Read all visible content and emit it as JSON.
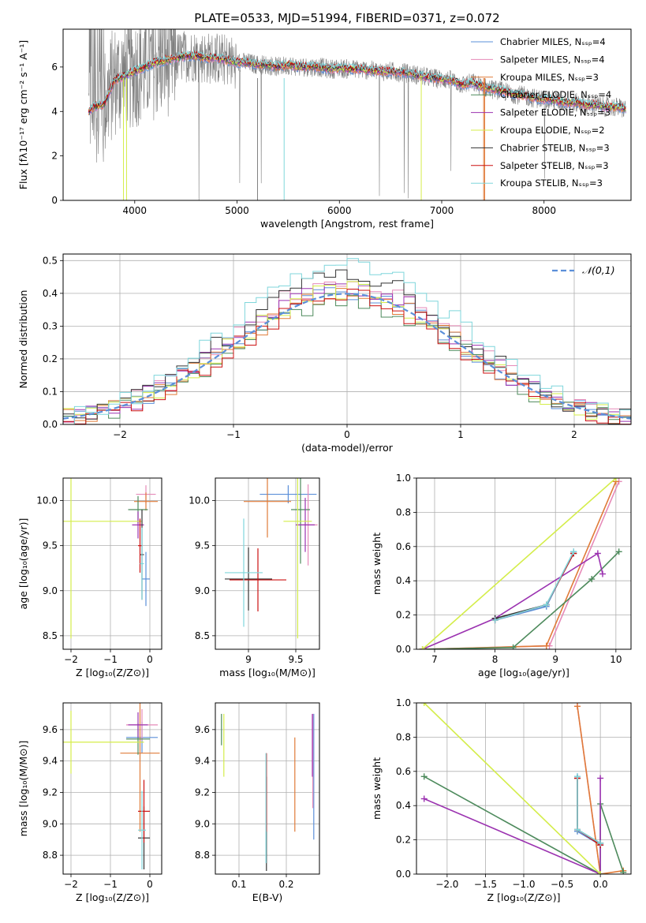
{
  "colors": {
    "chabrier_miles": "#5b8fd9",
    "salpeter_miles": "#e68ab8",
    "kroupa_miles": "#e07b39",
    "chabrier_elodie": "#4d8a5c",
    "salpeter_elodie": "#9b32b0",
    "kroupa_elodie": "#d4ed4a",
    "chabrier_stelib": "#333333",
    "salpeter_stelib": "#cc1111",
    "kroupa_stelib": "#7fd6db",
    "normal": "#5b8fd9",
    "observed": "#808080",
    "grid": "#b0b0b0"
  },
  "chart_data": [
    {
      "id": "spectrum",
      "type": "line",
      "title": "PLATE=0533, MJD=51994, FIBERID=0371, z=0.072",
      "xlabel": "wavelength [Angstrom, rest frame]",
      "ylabel": "Flux [fλ10⁻¹⁷ erg cm⁻² s⁻¹ A⁻¹]",
      "xlim": [
        3300,
        8850
      ],
      "ylim": [
        0,
        7.7
      ],
      "xticks": [
        4000,
        5000,
        6000,
        7000,
        8000
      ],
      "yticks": [
        0,
        2,
        4,
        6
      ],
      "grid": false,
      "legend_position": "upper-right",
      "legend": [
        "Chabrier MILES, Nₛₛₚ=4",
        "Salpeter MILES, Nₛₛₚ=4",
        "Kroupa MILES, Nₛₛₚ=3",
        "Chabrier ELODIE, Nₛₛₚ=4",
        "Salpeter ELODIE, Nₛₛₚ=3",
        "Kroupa ELODIE, Nₛₛₚ=2",
        "Chabrier STELIB, Nₛₛₚ=3",
        "Salpeter STELIB, Nₛₛₚ=3",
        "Kroupa STELIB, Nₛₛₚ=3"
      ],
      "observed_x": [
        3550,
        3600,
        3700,
        3800,
        3900,
        4000,
        4100,
        4200,
        4300,
        4400,
        4500,
        4600,
        4700,
        4800,
        4900,
        5000,
        5100,
        5200,
        5300,
        5400,
        5500,
        5600,
        5700,
        5800,
        5900,
        6000,
        6100,
        6200,
        6300,
        6400,
        6500,
        6600,
        6700,
        6800,
        6900,
        7000,
        7100,
        7200,
        7300,
        7400,
        7500,
        7600,
        7700,
        7800,
        7900,
        8000,
        8100,
        8200,
        8300,
        8400,
        8500,
        8600,
        8700,
        8800
      ],
      "model_y": [
        4.0,
        4.2,
        4.3,
        5.4,
        5.6,
        5.8,
        6.0,
        6.2,
        6.3,
        6.4,
        6.5,
        6.5,
        6.4,
        6.4,
        6.3,
        6.2,
        6.2,
        6.1,
        6.1,
        6.0,
        6.1,
        6.0,
        6.0,
        6.0,
        5.9,
        5.95,
        5.9,
        5.9,
        5.85,
        5.8,
        5.8,
        5.75,
        5.7,
        5.6,
        5.5,
        5.45,
        5.4,
        5.2,
        5.3,
        5.1,
        5.0,
        4.9,
        4.8,
        4.7,
        4.6,
        4.55,
        4.5,
        4.4,
        4.4,
        4.3,
        4.3,
        4.2,
        4.2,
        4.1
      ]
    },
    {
      "id": "residuals",
      "type": "line",
      "xlabel": "(data-model)/error",
      "ylabel": "Normed distribution",
      "xlim": [
        -2.5,
        2.5
      ],
      "ylim": [
        0,
        0.52
      ],
      "xticks": [
        -2,
        -1,
        0,
        1,
        2
      ],
      "yticks": [
        0.0,
        0.1,
        0.2,
        0.3,
        0.4,
        0.5
      ],
      "grid": true,
      "legend_position": "upper-right",
      "legend": [
        "𝒩(0,1)"
      ],
      "bin_width": 0.1,
      "hist_peaks": [
        0.41,
        0.44,
        0.4,
        0.38,
        0.42,
        0.41,
        0.46,
        0.39,
        0.5
      ]
    },
    {
      "id": "age_vs_Z",
      "type": "scatter",
      "xlabel": "Z [log₁₀(Z/Z⊙)]",
      "ylabel": "age  [log₁₀(age/yr)]",
      "xlim": [
        -2.2,
        0.3
      ],
      "ylim": [
        8.35,
        10.25
      ],
      "xticks": [
        -2,
        -1,
        0
      ],
      "yticks": [
        8.5,
        9.0,
        9.5,
        10.0
      ],
      "grid": true,
      "points": [
        {
          "m": "chabrier_miles",
          "x": -0.1,
          "y": 9.13,
          "xe": 0.1,
          "ye": 0.3
        },
        {
          "m": "salpeter_miles",
          "x": -0.1,
          "y": 10.07,
          "xe": 0.25,
          "ye": 0.1
        },
        {
          "m": "kroupa_miles",
          "x": -0.1,
          "y": 9.99,
          "xe": 0.3,
          "ye": 0.1
        },
        {
          "m": "chabrier_elodie",
          "x": -0.3,
          "y": 9.9,
          "xe": 0.25,
          "ye": 0.15
        },
        {
          "m": "salpeter_elodie",
          "x": -0.3,
          "y": 9.73,
          "xe": 0.15,
          "ye": 0.15
        },
        {
          "m": "kroupa_elodie",
          "x": -2.0,
          "y": 9.77,
          "xe": 1.8,
          "ye": 1.3
        },
        {
          "m": "chabrier_stelib",
          "x": -0.2,
          "y": 9.4,
          "xe": 0.05,
          "ye": 0.5
        },
        {
          "m": "salpeter_stelib",
          "x": -0.25,
          "y": 9.5,
          "xe": 0.05,
          "ye": 0.3
        },
        {
          "m": "kroupa_stelib",
          "x": -0.2,
          "y": 9.3,
          "xe": 0.05,
          "ye": 0.4
        }
      ]
    },
    {
      "id": "age_vs_mass",
      "type": "scatter",
      "xlabel": "mass [log₁₀(M/M⊙)]",
      "xlim": [
        8.65,
        9.75
      ],
      "ylim": [
        8.35,
        10.25
      ],
      "xticks": [
        9.0,
        9.5
      ],
      "yticks": [
        8.5,
        9.0,
        9.5,
        10.0
      ],
      "grid": true,
      "points": [
        {
          "m": "chabrier_miles",
          "x": 9.42,
          "y": 10.07,
          "xe": 0.3,
          "ye": 0.1
        },
        {
          "m": "salpeter_miles",
          "x": 9.63,
          "y": 9.73,
          "xe": 0.1,
          "ye": 0.45
        },
        {
          "m": "kroupa_miles",
          "x": 9.2,
          "y": 9.99,
          "xe": 0.25,
          "ye": 0.4
        },
        {
          "m": "chabrier_elodie",
          "x": 9.55,
          "y": 9.9,
          "xe": 0.1,
          "ye": 0.6
        },
        {
          "m": "salpeter_elodie",
          "x": 9.6,
          "y": 9.73,
          "xe": 0.1,
          "ye": 0.3
        },
        {
          "m": "kroupa_elodie",
          "x": 9.52,
          "y": 9.77,
          "xe": 0.15,
          "ye": 1.3
        },
        {
          "m": "chabrier_stelib",
          "x": 9.0,
          "y": 9.13,
          "xe": 0.25,
          "ye": 0.35
        },
        {
          "m": "salpeter_stelib",
          "x": 9.1,
          "y": 9.12,
          "xe": 0.3,
          "ye": 0.35
        },
        {
          "m": "kroupa_stelib",
          "x": 8.95,
          "y": 9.2,
          "xe": 0.2,
          "ye": 0.6
        }
      ]
    },
    {
      "id": "weight_vs_age",
      "type": "line",
      "xlabel": "age  [log₁₀(age/yr)]",
      "ylabel": "mass weight",
      "xlim": [
        6.7,
        10.25
      ],
      "ylim": [
        0,
        1
      ],
      "xticks": [
        7,
        8,
        9,
        10
      ],
      "yticks": [
        0.0,
        0.2,
        0.4,
        0.6,
        0.8,
        1.0
      ],
      "grid": true,
      "series": [
        {
          "m": "chabrier_miles",
          "x": [
            8.0,
            8.85,
            9.3
          ],
          "y": [
            0.17,
            0.25,
            0.57
          ]
        },
        {
          "m": "salpeter_miles",
          "x": [
            6.8,
            8.9,
            10.05
          ],
          "y": [
            0.0,
            0.02,
            0.98
          ]
        },
        {
          "m": "kroupa_miles",
          "x": [
            6.8,
            8.85,
            10.0
          ],
          "y": [
            0.0,
            0.02,
            0.98
          ]
        },
        {
          "m": "chabrier_elodie",
          "x": [
            6.8,
            8.3,
            9.6,
            10.05
          ],
          "y": [
            0.0,
            0.01,
            0.41,
            0.57
          ]
        },
        {
          "m": "salpeter_elodie",
          "x": [
            6.8,
            8.0,
            9.7,
            9.78
          ],
          "y": [
            0.0,
            0.18,
            0.56,
            0.44
          ]
        },
        {
          "m": "kroupa_elodie",
          "x": [
            6.8,
            10.0
          ],
          "y": [
            0.0,
            1.0
          ]
        },
        {
          "m": "chabrier_stelib",
          "x": [
            8.0,
            8.85,
            9.3
          ],
          "y": [
            0.18,
            0.26,
            0.56
          ]
        },
        {
          "m": "salpeter_stelib",
          "x": [
            8.0,
            8.85,
            9.3
          ],
          "y": [
            0.17,
            0.26,
            0.56
          ]
        },
        {
          "m": "kroupa_stelib",
          "x": [
            8.0,
            8.85,
            9.3
          ],
          "y": [
            0.17,
            0.26,
            0.57
          ]
        }
      ]
    },
    {
      "id": "mass_vs_Z",
      "type": "scatter",
      "xlabel": "Z [log₁₀(Z/Z⊙)]",
      "ylabel": "mass [log₁₀(M/M⊙)]",
      "xlim": [
        -2.2,
        0.3
      ],
      "ylim": [
        8.68,
        9.77
      ],
      "xticks": [
        -2,
        -1,
        0
      ],
      "yticks": [
        8.8,
        9.0,
        9.2,
        9.4,
        9.6
      ],
      "grid": true,
      "points": [
        {
          "m": "chabrier_miles",
          "x": -0.2,
          "y": 9.55,
          "xe": 0.4,
          "ye": 0.1
        },
        {
          "m": "salpeter_miles",
          "x": -0.2,
          "y": 9.63,
          "xe": 0.4,
          "ye": 0.1
        },
        {
          "m": "kroupa_miles",
          "x": -0.25,
          "y": 9.45,
          "xe": 0.5,
          "ye": 0.5
        },
        {
          "m": "chabrier_elodie",
          "x": -0.3,
          "y": 9.54,
          "xe": 0.3,
          "ye": 0.1
        },
        {
          "m": "salpeter_elodie",
          "x": -0.3,
          "y": 9.63,
          "xe": 0.25,
          "ye": 0.08
        },
        {
          "m": "kroupa_elodie",
          "x": -2.0,
          "y": 9.52,
          "xe": 1.85,
          "ye": 0.2
        },
        {
          "m": "chabrier_stelib",
          "x": -0.15,
          "y": 8.91,
          "xe": 0.15,
          "ye": 0.2
        },
        {
          "m": "salpeter_stelib",
          "x": -0.15,
          "y": 9.08,
          "xe": 0.15,
          "ye": 0.2
        },
        {
          "m": "kroupa_stelib",
          "x": -0.2,
          "y": 8.96,
          "xe": 0.1,
          "ye": 0.25
        }
      ]
    },
    {
      "id": "mass_vs_ebv",
      "type": "scatter",
      "xlabel": "E(B-V)",
      "xlim": [
        0.05,
        0.27
      ],
      "ylim": [
        8.68,
        9.77
      ],
      "xticks": [
        0.1,
        0.2
      ],
      "yticks": [
        8.8,
        9.0,
        9.2,
        9.4,
        9.6
      ],
      "grid": true,
      "points": [
        {
          "m": "chabrier_miles",
          "x": 0.258,
          "y": 9.3,
          "xe": 0,
          "ye": 0.4
        },
        {
          "m": "salpeter_miles",
          "x": 0.256,
          "y": 9.4,
          "xe": 0,
          "ye": 0.3
        },
        {
          "m": "kroupa_miles",
          "x": 0.218,
          "y": 9.25,
          "xe": 0,
          "ye": 0.3
        },
        {
          "m": "chabrier_elodie",
          "x": 0.063,
          "y": 9.6,
          "xe": 0,
          "ye": 0.1
        },
        {
          "m": "salpeter_elodie",
          "x": 0.255,
          "y": 9.5,
          "xe": 0,
          "ye": 0.2
        },
        {
          "m": "kroupa_elodie",
          "x": 0.068,
          "y": 9.5,
          "xe": 0,
          "ye": 0.2
        },
        {
          "m": "chabrier_stelib",
          "x": 0.158,
          "y": 9.0,
          "xe": 0,
          "ye": 0.3
        },
        {
          "m": "salpeter_stelib",
          "x": 0.158,
          "y": 9.2,
          "xe": 0,
          "ye": 0.25
        },
        {
          "m": "kroupa_stelib",
          "x": 0.157,
          "y": 9.1,
          "xe": 0,
          "ye": 0.35
        }
      ]
    },
    {
      "id": "weight_vs_Z",
      "type": "line",
      "xlabel": "Z [log₁₀(Z/Z⊙)]",
      "ylabel": "mass weight",
      "xlim": [
        -2.4,
        0.4
      ],
      "ylim": [
        0,
        1
      ],
      "xticks": [
        -2.0,
        -1.5,
        -1.0,
        -0.5,
        0.0
      ],
      "xtick_labels": [
        "−2.0",
        "−1.5",
        "−1.0",
        "−0.5",
        "0.0"
      ],
      "yticks": [
        0.0,
        0.2,
        0.4,
        0.6,
        0.8,
        1.0
      ],
      "grid": true,
      "series": [
        {
          "m": "chabrier_miles",
          "x": [
            -0.3,
            -0.3,
            0.0
          ],
          "y": [
            0.57,
            0.25,
            0.17
          ]
        },
        {
          "m": "salpeter_miles",
          "x": [
            -0.3,
            0.0
          ],
          "y": [
            0.98,
            0.0
          ]
        },
        {
          "m": "kroupa_miles",
          "x": [
            -0.3,
            0.0,
            0.3
          ],
          "y": [
            0.98,
            0.0,
            0.02
          ]
        },
        {
          "m": "chabrier_elodie",
          "x": [
            -2.3,
            0.0,
            0.0,
            0.3
          ],
          "y": [
            0.57,
            0.0,
            0.41,
            0.01
          ]
        },
        {
          "m": "salpeter_elodie",
          "x": [
            -2.3,
            0.0,
            0.0
          ],
          "y": [
            0.44,
            0.0,
            0.56
          ]
        },
        {
          "m": "kroupa_elodie",
          "x": [
            -2.3,
            0.0
          ],
          "y": [
            1.0,
            0.0
          ]
        },
        {
          "m": "chabrier_stelib",
          "x": [
            -0.3,
            -0.3,
            0.0
          ],
          "y": [
            0.56,
            0.26,
            0.18
          ]
        },
        {
          "m": "salpeter_stelib",
          "x": [
            -0.3,
            -0.3,
            0.0
          ],
          "y": [
            0.56,
            0.26,
            0.17
          ]
        },
        {
          "m": "kroupa_stelib",
          "x": [
            -0.3,
            -0.3,
            0.0
          ],
          "y": [
            0.57,
            0.26,
            0.18
          ]
        }
      ]
    }
  ]
}
